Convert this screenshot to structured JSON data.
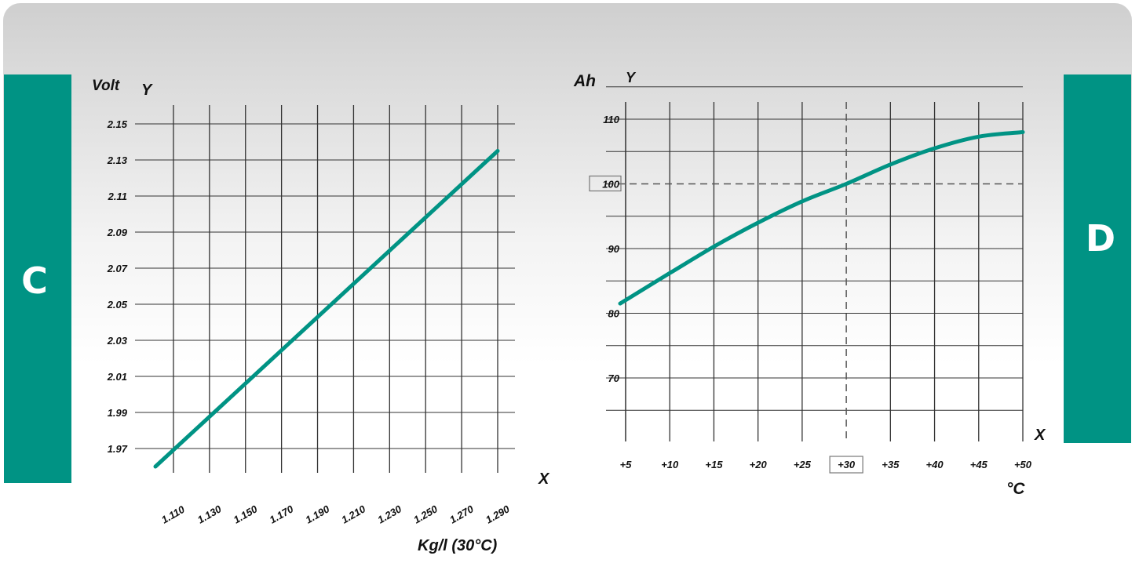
{
  "tabs": {
    "left": "C",
    "right": "D"
  },
  "colors": {
    "accent": "#009384",
    "grid": "#333333"
  },
  "chart_data": [
    {
      "type": "line",
      "panel": "C",
      "ylabel": "Volt",
      "y_axis_letter": "Y",
      "x_axis_letter": "X",
      "xlabel": "Kg/l (30°C)",
      "x_ticks": [
        "1.110",
        "1.130",
        "1.150",
        "1.170",
        "1.190",
        "1.210",
        "1.230",
        "1.250",
        "1.270",
        "1.290"
      ],
      "y_ticks": [
        "2.15",
        "2.13",
        "2.11",
        "2.09",
        "2.07",
        "2.05",
        "2.03",
        "2.01",
        "1.99",
        "1.97"
      ],
      "xlim": [
        1.1,
        1.3
      ],
      "ylim": [
        1.96,
        2.15
      ],
      "grid": true,
      "series": [
        {
          "x": [
            1.1,
            1.29
          ],
          "y": [
            1.96,
            2.135
          ]
        }
      ]
    },
    {
      "type": "line",
      "panel": "D",
      "ylabel": "Ah",
      "y_axis_letter": "Y",
      "x_axis_letter": "X",
      "xlabel": "°C",
      "x_ticks": [
        "+5",
        "+10",
        "+15",
        "+20",
        "+25",
        "+30",
        "+35",
        "+40",
        "+45",
        "+50"
      ],
      "y_ticks": [
        "110",
        "100",
        "90",
        "80",
        "70"
      ],
      "xlim": [
        5,
        50
      ],
      "ylim": [
        60,
        115
      ],
      "grid": true,
      "highlight": {
        "x": "+30",
        "y": "100"
      },
      "series": [
        {
          "x": [
            5,
            10,
            15,
            20,
            25,
            30,
            35,
            40,
            45,
            50
          ],
          "y": [
            81.5,
            86.2,
            90.3,
            94.0,
            97.3,
            100.0,
            103.0,
            105.5,
            107.3,
            108.0
          ]
        }
      ]
    }
  ]
}
